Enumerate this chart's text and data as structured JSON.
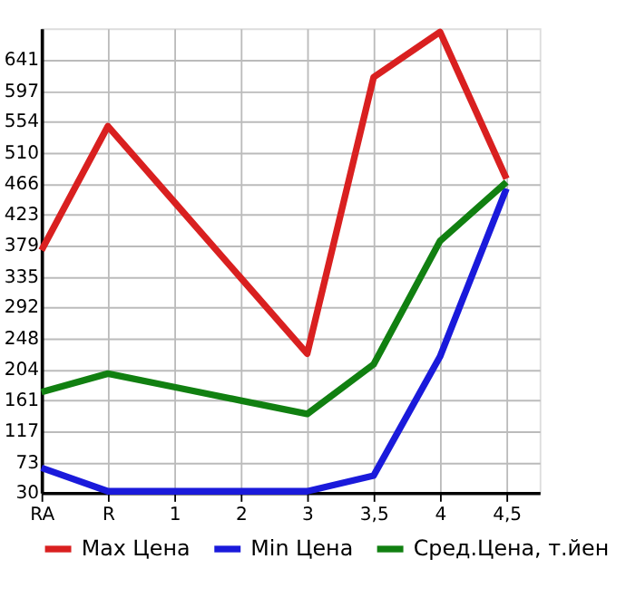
{
  "chart_data": {
    "type": "line",
    "categories": [
      "RA",
      "R",
      "1",
      "2",
      "3",
      "3,5",
      "4",
      "4,5"
    ],
    "series": [
      {
        "name": "Max Цена",
        "color": "#d92020",
        "values": [
          372,
          547,
          440,
          333,
          226,
          616,
          680,
          473
        ]
      },
      {
        "name": "Min Цена",
        "color": "#1a1adb",
        "values": [
          65,
          32,
          32,
          32,
          32,
          54,
          222,
          459
        ]
      },
      {
        "name": "Сред.Цена, т.йен",
        "color": "#118011",
        "values": [
          172,
          198,
          179,
          160,
          141,
          211,
          385,
          468
        ]
      }
    ],
    "ylim": [
      30,
      685
    ],
    "yticks": [
      30,
      73,
      117,
      161,
      204,
      248,
      292,
      335,
      379,
      423,
      466,
      510,
      554,
      597,
      641
    ],
    "grid": true,
    "legend": "bottom",
    "marker": "none",
    "line_style": "solid"
  }
}
